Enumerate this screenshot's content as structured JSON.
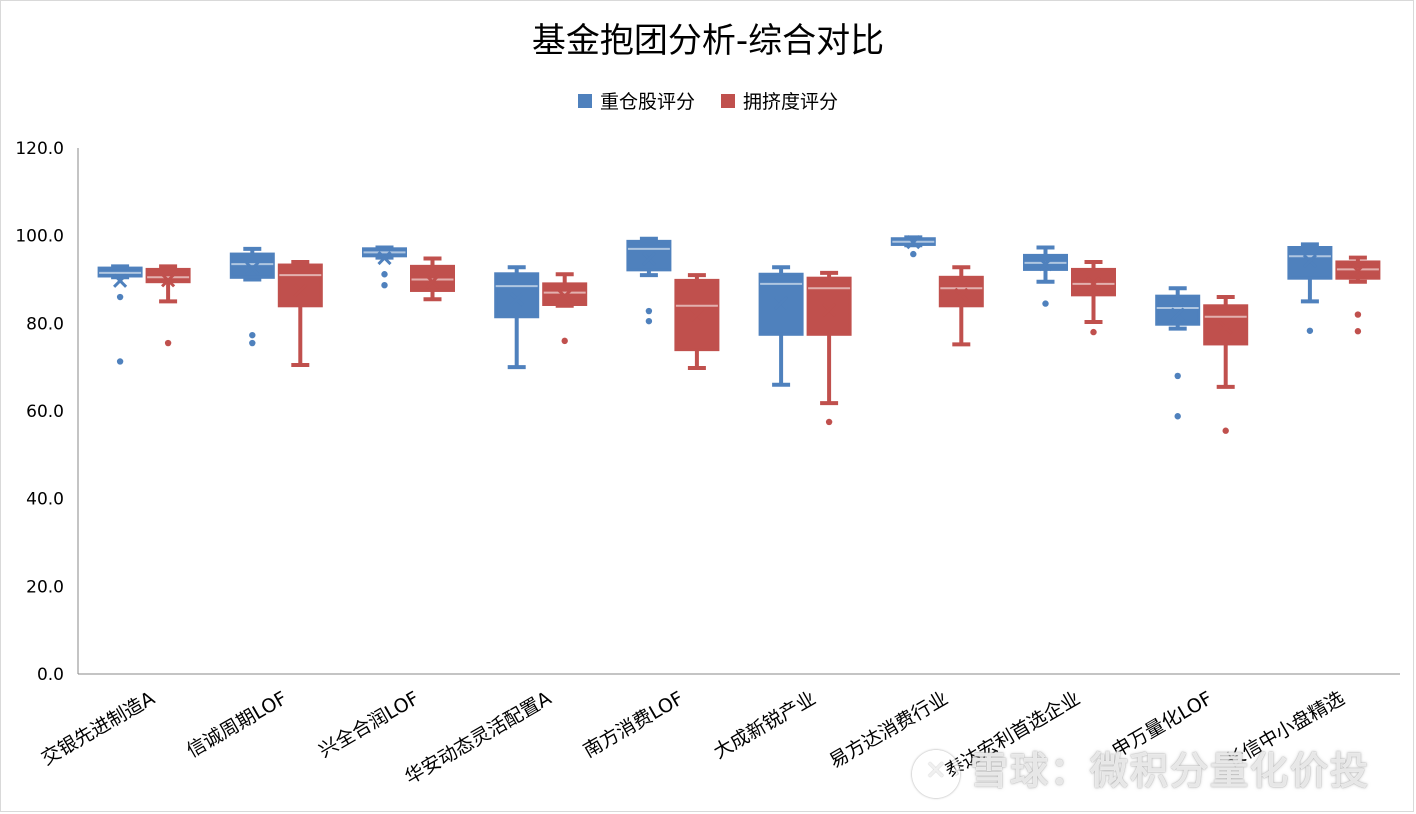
{
  "chart_data": {
    "type": "boxplot",
    "title": "基金抱团分析-综合对比",
    "legend_position": "top",
    "ylim": [
      0,
      120
    ],
    "yticks": [
      "0.0",
      "20.0",
      "40.0",
      "60.0",
      "80.0",
      "100.0",
      "120.0"
    ],
    "grid": false,
    "categories": [
      "交银先进制造A",
      "信诚周期LOF",
      "兴全合润LOF",
      "华安动态灵活配置A",
      "南方消费LOF",
      "大成新锐产业",
      "易方达消费行业",
      "泰达宏利首选企业",
      "申万量化LOF",
      "长信中小盘精选"
    ],
    "series": [
      {
        "name": "重仓股评分",
        "color": "#4f81bd",
        "boxes": [
          {
            "min": 90.5,
            "q1": 90.8,
            "median": 91.5,
            "q3": 92.6,
            "max": 93.0,
            "mean": 89.7,
            "outliers": [
              86.0,
              71.3
            ]
          },
          {
            "min": 90.0,
            "q1": 90.5,
            "median": 93.5,
            "q3": 95.8,
            "max": 97.0,
            "mean": 92.5,
            "outliers": [
              77.3,
              75.5
            ]
          },
          {
            "min": 95.0,
            "q1": 95.4,
            "median": 96.2,
            "q3": 97.0,
            "max": 97.3,
            "mean": 94.9,
            "outliers": [
              91.2,
              88.7
            ]
          },
          {
            "min": 70.0,
            "q1": 81.5,
            "median": 88.5,
            "q3": 91.3,
            "max": 92.8,
            "mean": 85.5,
            "outliers": []
          },
          {
            "min": 91.0,
            "q1": 92.2,
            "median": 97.0,
            "q3": 98.7,
            "max": 99.3,
            "mean": 94.7,
            "outliers": [
              82.8,
              80.5
            ]
          },
          {
            "min": 66.0,
            "q1": 77.5,
            "median": 89.0,
            "q3": 91.2,
            "max": 92.8,
            "mean": 84.7,
            "outliers": []
          },
          {
            "min": 97.8,
            "q1": 98.0,
            "median": 98.6,
            "q3": 99.3,
            "max": 99.6,
            "mean": 98.5,
            "outliers": [
              95.8
            ]
          },
          {
            "min": 89.5,
            "q1": 92.3,
            "median": 93.8,
            "q3": 95.5,
            "max": 97.3,
            "mean": 93.5,
            "outliers": [
              84.5
            ]
          },
          {
            "min": 78.8,
            "q1": 79.8,
            "median": 83.5,
            "q3": 86.2,
            "max": 88.0,
            "mean": 82.0,
            "outliers": [
              68.0,
              58.8
            ]
          },
          {
            "min": 85.0,
            "q1": 90.3,
            "median": 95.3,
            "q3": 97.3,
            "max": 98.0,
            "mean": 94.2,
            "outliers": [
              78.3
            ]
          }
        ]
      },
      {
        "name": "拥挤度评分",
        "color": "#c0504d",
        "boxes": [
          {
            "min": 85.0,
            "q1": 89.5,
            "median": 90.5,
            "q3": 92.3,
            "max": 93.0,
            "mean": 89.8,
            "outliers": [
              75.5
            ]
          },
          {
            "min": 70.5,
            "q1": 84.0,
            "median": 91.0,
            "q3": 93.3,
            "max": 94.0,
            "mean": 87.5,
            "outliers": []
          },
          {
            "min": 85.5,
            "q1": 87.5,
            "median": 90.0,
            "q3": 93.0,
            "max": 94.8,
            "mean": 89.5,
            "outliers": []
          },
          {
            "min": 84.0,
            "q1": 84.3,
            "median": 87.0,
            "q3": 89.0,
            "max": 91.2,
            "mean": 86.2,
            "outliers": [
              76.0
            ]
          },
          {
            "min": 69.8,
            "q1": 74.0,
            "median": 84.0,
            "q3": 89.8,
            "max": 91.0,
            "mean": 82.0,
            "outliers": []
          },
          {
            "min": 61.8,
            "q1": 77.5,
            "median": 88.0,
            "q3": 90.3,
            "max": 91.5,
            "mean": 83.0,
            "outliers": [
              57.5
            ]
          },
          {
            "min": 75.2,
            "q1": 84.0,
            "median": 88.0,
            "q3": 90.5,
            "max": 92.8,
            "mean": 86.5,
            "outliers": []
          },
          {
            "min": 80.3,
            "q1": 86.5,
            "median": 89.0,
            "q3": 92.3,
            "max": 94.0,
            "mean": 89.0,
            "outliers": [
              78.0
            ]
          },
          {
            "min": 65.5,
            "q1": 75.3,
            "median": 81.5,
            "q3": 84.0,
            "max": 86.0,
            "mean": 79.0,
            "outliers": [
              55.5
            ]
          },
          {
            "min": 89.5,
            "q1": 90.3,
            "median": 92.3,
            "q3": 94.0,
            "max": 95.0,
            "mean": 92.0,
            "outliers": [
              82.0,
              78.2
            ]
          }
        ]
      }
    ]
  },
  "watermark": {
    "text": "雪球：微积分量化价投"
  }
}
